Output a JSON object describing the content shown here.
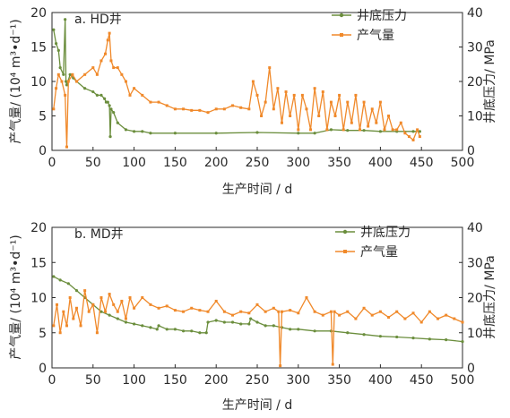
{
  "chart_data": [
    {
      "type": "line",
      "title": "a. HD井",
      "xlabel": "生产时间  / d",
      "ylabel_left": "产气量/ (10⁴ m³•d⁻¹)",
      "ylabel_right": "井底压力/ MPa",
      "xlim": [
        0,
        500
      ],
      "ylim_left": [
        0,
        20
      ],
      "ylim_right": [
        0,
        40
      ],
      "xticks": [
        0,
        50,
        100,
        150,
        200,
        250,
        300,
        350,
        400,
        450,
        500
      ],
      "yticks_left": [
        0,
        5,
        10,
        15,
        20
      ],
      "yticks_right": [
        0,
        10,
        20,
        30,
        40
      ],
      "legend_position": "top-right",
      "grid": false,
      "series": [
        {
          "name": "井底压力",
          "axis": "right",
          "color": "#6b8e3d",
          "marker": "circle",
          "x": [
            2,
            5,
            8,
            10,
            14,
            16,
            17,
            18,
            22,
            26,
            30,
            40,
            50,
            55,
            60,
            64,
            66,
            68,
            70,
            71,
            72,
            75,
            80,
            90,
            100,
            110,
            120,
            150,
            200,
            250,
            300,
            320,
            340,
            360,
            380,
            400,
            420,
            440,
            448
          ],
          "y": [
            35,
            31,
            29,
            24,
            22,
            38,
            20,
            19,
            22,
            21,
            20,
            18,
            17,
            16,
            16,
            15,
            14,
            14,
            13,
            4,
            12,
            11,
            8,
            6,
            5.5,
            5.5,
            5,
            5,
            5,
            5.2,
            5,
            5,
            6,
            5.8,
            5.8,
            5.5,
            5.5,
            5.5,
            5.5
          ]
        },
        {
          "name": "产气量",
          "axis": "left",
          "color": "#f0892a",
          "marker": "square",
          "x": [
            2,
            5,
            8,
            12,
            16,
            18,
            20,
            25,
            30,
            40,
            50,
            55,
            60,
            65,
            68,
            70,
            72,
            75,
            80,
            85,
            90,
            95,
            100,
            110,
            120,
            130,
            140,
            150,
            160,
            170,
            180,
            190,
            200,
            210,
            220,
            230,
            240,
            245,
            250,
            255,
            260,
            265,
            270,
            275,
            280,
            285,
            290,
            295,
            300,
            305,
            310,
            315,
            320,
            325,
            330,
            335,
            340,
            345,
            350,
            355,
            360,
            365,
            370,
            375,
            380,
            385,
            390,
            395,
            400,
            405,
            410,
            415,
            420,
            425,
            430,
            435,
            440,
            445,
            448
          ],
          "y": [
            6,
            9,
            11,
            10,
            8,
            0.5,
            10,
            11,
            10,
            11,
            12,
            11,
            13,
            14,
            16,
            17,
            13,
            12,
            12,
            11,
            10,
            8,
            9,
            8,
            7,
            7,
            6.5,
            6,
            6,
            5.8,
            5.8,
            5.5,
            6,
            6,
            6.5,
            6.2,
            6,
            10,
            8,
            5,
            7,
            12,
            6,
            9,
            4,
            8.5,
            5,
            8,
            3,
            8,
            6,
            3,
            9,
            5,
            8.5,
            3,
            7,
            5,
            8,
            3,
            7,
            4,
            8,
            3,
            7,
            3.5,
            6,
            4,
            7,
            3,
            5,
            3,
            3,
            4,
            2.5,
            2,
            1.5,
            3,
            2
          ]
        }
      ]
    },
    {
      "type": "line",
      "title": "b. MD井",
      "xlabel": "生产时间  / d",
      "ylabel_left": "产气量/ (10⁴ m³•d⁻¹)",
      "ylabel_right": "井底压力/ MPa",
      "xlim": [
        0,
        500
      ],
      "ylim_left": [
        0,
        20
      ],
      "ylim_right": [
        0,
        40
      ],
      "xticks": [
        0,
        50,
        100,
        150,
        200,
        250,
        300,
        350,
        400,
        450,
        500
      ],
      "yticks_left": [
        0,
        5,
        10,
        15,
        20
      ],
      "yticks_right": [
        0,
        10,
        20,
        30,
        40
      ],
      "legend_position": "top-right",
      "grid": false,
      "series": [
        {
          "name": "井底压力",
          "axis": "right",
          "color": "#6b8e3d",
          "marker": "circle",
          "x": [
            2,
            10,
            20,
            30,
            40,
            50,
            60,
            70,
            80,
            90,
            100,
            110,
            120,
            128,
            130,
            140,
            150,
            160,
            170,
            180,
            188,
            190,
            200,
            210,
            220,
            230,
            240,
            242,
            250,
            260,
            270,
            280,
            290,
            300,
            320,
            340,
            360,
            380,
            400,
            420,
            440,
            460,
            480,
            500
          ],
          "y": [
            26,
            25,
            24,
            22,
            20,
            18,
            16,
            15,
            14,
            13,
            12.5,
            12,
            11.5,
            11,
            12,
            11,
            11,
            10.5,
            10.5,
            10,
            10,
            13,
            13.5,
            13,
            13,
            12.5,
            12.5,
            14,
            13,
            12,
            12,
            11.5,
            11,
            11,
            10.5,
            10.5,
            10,
            9.5,
            9,
            8.8,
            8.5,
            8.2,
            8,
            7.5
          ]
        },
        {
          "name": "产气量",
          "axis": "left",
          "color": "#f0892a",
          "marker": "square",
          "x": [
            2,
            6,
            10,
            14,
            18,
            22,
            26,
            30,
            35,
            40,
            45,
            50,
            55,
            60,
            65,
            70,
            75,
            80,
            85,
            90,
            95,
            100,
            110,
            120,
            130,
            140,
            150,
            160,
            170,
            180,
            190,
            200,
            210,
            220,
            230,
            240,
            250,
            260,
            270,
            276,
            278,
            280,
            290,
            300,
            310,
            320,
            330,
            340,
            342,
            344,
            350,
            360,
            370,
            380,
            390,
            400,
            410,
            420,
            430,
            440,
            450,
            460,
            470,
            480,
            490,
            500
          ],
          "y": [
            6,
            9,
            5,
            8,
            6,
            10,
            7,
            8.5,
            6,
            11,
            8,
            9,
            5,
            10,
            8,
            10.5,
            9,
            8,
            9.5,
            7,
            10,
            8.5,
            10,
            9,
            8.5,
            8.8,
            8.2,
            8,
            8.5,
            8.2,
            8,
            9.5,
            8,
            7.5,
            8,
            7.8,
            9,
            8,
            8.5,
            8,
            0.3,
            8,
            8.2,
            7.8,
            10,
            8,
            7.5,
            8,
            0.5,
            8,
            7.5,
            8,
            7,
            8.5,
            7.5,
            8,
            7.2,
            8,
            7,
            7.8,
            6.5,
            8,
            7,
            7.5,
            7,
            6.5
          ]
        }
      ]
    }
  ]
}
